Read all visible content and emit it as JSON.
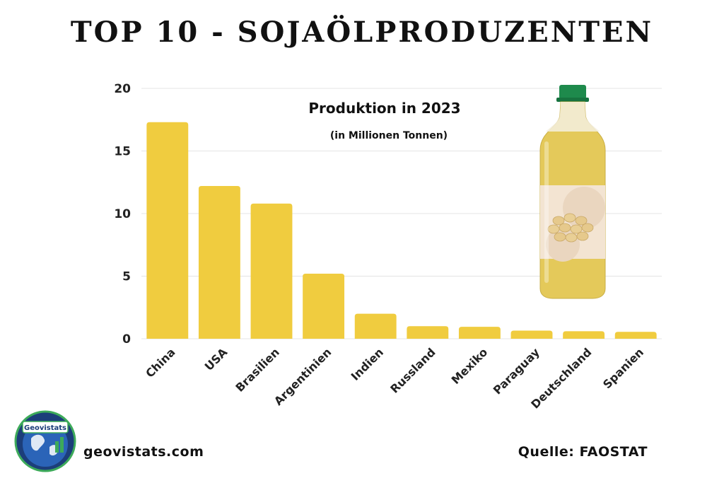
{
  "header": {
    "title": "TOP 10 - SOJAÖLPRODUZENTEN"
  },
  "chart_data": {
    "type": "bar",
    "title": "Produktion in 2023",
    "subtitle": "(in Millionen Tonnen)",
    "categories": [
      "China",
      "USA",
      "Brasilien",
      "Argentinien",
      "Indien",
      "Russland",
      "Mexiko",
      "Paraguay",
      "Deutschland",
      "Spanien"
    ],
    "values": [
      17.3,
      12.2,
      10.8,
      5.2,
      2.0,
      1.0,
      0.95,
      0.65,
      0.6,
      0.55
    ],
    "ylim": [
      0,
      20
    ],
    "yticks": [
      0,
      5,
      10,
      15,
      20
    ],
    "grid": true,
    "bar_color": "#F0CC3F"
  },
  "image": {
    "icon": "oil-bottle-icon",
    "label_color": "#F3E4D2",
    "cap_color": "#1E8A4C",
    "oil_color": "#E4C95A"
  },
  "logo": {
    "icon": "geovistats-logo",
    "text": "Geovistats"
  },
  "footer": {
    "site": "geovistats.com",
    "source": "Quelle: FAOSTAT"
  }
}
